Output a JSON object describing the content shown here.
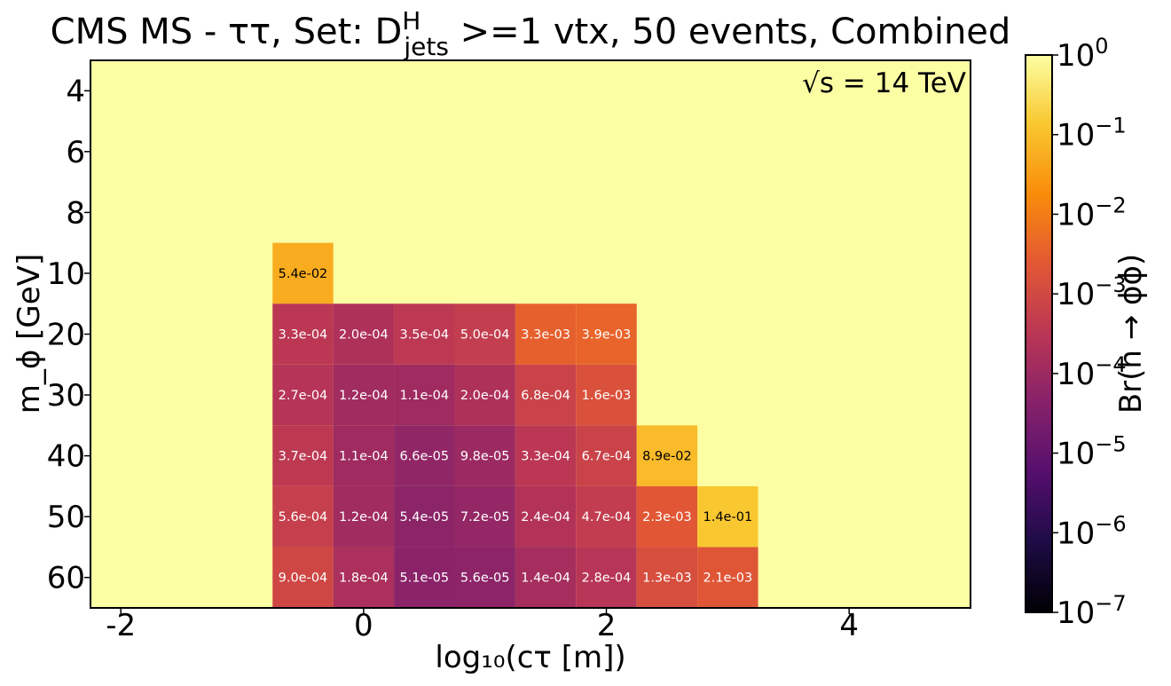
{
  "chart_data": {
    "type": "heatmap",
    "title": {
      "prefix": "CMS MS - ττ, Set: D",
      "superscript": "H",
      "subscript": "jets",
      "suffix": " >=1 vtx, 50 events, Combined"
    },
    "annotation": "√s = 14 TeV",
    "xlabel": "log₁₀(cτ [m])",
    "ylabel": "m_ϕ [GeV]",
    "x_ticks": [
      "-2",
      "0",
      "2",
      "4"
    ],
    "y_ticks": [
      "4",
      "6",
      "8",
      "10",
      "20",
      "30",
      "40",
      "50",
      "60"
    ],
    "x_range": [
      -2.25,
      5.0
    ],
    "x_bin_width": 0.5,
    "colorbar": {
      "label": "Br(h → ϕϕ)",
      "scale": "log",
      "range": [
        1e-07,
        1
      ],
      "colormap": "inferno",
      "ticks": [
        {
          "base": "10",
          "exp": "0"
        },
        {
          "base": "10",
          "exp": "−1"
        },
        {
          "base": "10",
          "exp": "−2"
        },
        {
          "base": "10",
          "exp": "−3"
        },
        {
          "base": "10",
          "exp": "−4"
        },
        {
          "base": "10",
          "exp": "−5"
        },
        {
          "base": "10",
          "exp": "−6"
        },
        {
          "base": "10",
          "exp": "−7"
        }
      ]
    },
    "background_value": 1,
    "cells": [
      {
        "y": "10",
        "x": -0.5,
        "v": 0.054,
        "label": "5.4e-02"
      },
      {
        "y": "20",
        "x": -0.5,
        "v": 0.00033,
        "label": "3.3e-04"
      },
      {
        "y": "20",
        "x": 0.0,
        "v": 0.0002,
        "label": "2.0e-04"
      },
      {
        "y": "20",
        "x": 0.5,
        "v": 0.00035,
        "label": "3.5e-04"
      },
      {
        "y": "20",
        "x": 1.0,
        "v": 0.0005,
        "label": "5.0e-04"
      },
      {
        "y": "20",
        "x": 1.5,
        "v": 0.0033,
        "label": "3.3e-03"
      },
      {
        "y": "20",
        "x": 2.0,
        "v": 0.0039,
        "label": "3.9e-03"
      },
      {
        "y": "30",
        "x": -0.5,
        "v": 0.00027,
        "label": "2.7e-04"
      },
      {
        "y": "30",
        "x": 0.0,
        "v": 0.00012,
        "label": "1.2e-04"
      },
      {
        "y": "30",
        "x": 0.5,
        "v": 0.00011,
        "label": "1.1e-04"
      },
      {
        "y": "30",
        "x": 1.0,
        "v": 0.0002,
        "label": "2.0e-04"
      },
      {
        "y": "30",
        "x": 1.5,
        "v": 0.00068,
        "label": "6.8e-04"
      },
      {
        "y": "30",
        "x": 2.0,
        "v": 0.0016,
        "label": "1.6e-03"
      },
      {
        "y": "40",
        "x": -0.5,
        "v": 0.00037,
        "label": "3.7e-04"
      },
      {
        "y": "40",
        "x": 0.0,
        "v": 0.00011,
        "label": "1.1e-04"
      },
      {
        "y": "40",
        "x": 0.5,
        "v": 6.6e-05,
        "label": "6.6e-05"
      },
      {
        "y": "40",
        "x": 1.0,
        "v": 9.8e-05,
        "label": "9.8e-05"
      },
      {
        "y": "40",
        "x": 1.5,
        "v": 0.00033,
        "label": "3.3e-04"
      },
      {
        "y": "40",
        "x": 2.0,
        "v": 0.00067,
        "label": "6.7e-04"
      },
      {
        "y": "40",
        "x": 2.5,
        "v": 0.089,
        "label": "8.9e-02"
      },
      {
        "y": "50",
        "x": -0.5,
        "v": 0.00056,
        "label": "5.6e-04"
      },
      {
        "y": "50",
        "x": 0.0,
        "v": 0.00012,
        "label": "1.2e-04"
      },
      {
        "y": "50",
        "x": 0.5,
        "v": 5.4e-05,
        "label": "5.4e-05"
      },
      {
        "y": "50",
        "x": 1.0,
        "v": 7.2e-05,
        "label": "7.2e-05"
      },
      {
        "y": "50",
        "x": 1.5,
        "v": 0.00024,
        "label": "2.4e-04"
      },
      {
        "y": "50",
        "x": 2.0,
        "v": 0.00047,
        "label": "4.7e-04"
      },
      {
        "y": "50",
        "x": 2.5,
        "v": 0.0023,
        "label": "2.3e-03"
      },
      {
        "y": "50",
        "x": 3.0,
        "v": 0.14,
        "label": "1.4e-01"
      },
      {
        "y": "60",
        "x": -0.5,
        "v": 0.0009,
        "label": "9.0e-04"
      },
      {
        "y": "60",
        "x": 0.0,
        "v": 0.00018,
        "label": "1.8e-04"
      },
      {
        "y": "60",
        "x": 0.5,
        "v": 5.1e-05,
        "label": "5.1e-05"
      },
      {
        "y": "60",
        "x": 1.0,
        "v": 5.6e-05,
        "label": "5.6e-05"
      },
      {
        "y": "60",
        "x": 1.5,
        "v": 0.00014,
        "label": "1.4e-04"
      },
      {
        "y": "60",
        "x": 2.0,
        "v": 0.00028,
        "label": "2.8e-04"
      },
      {
        "y": "60",
        "x": 2.5,
        "v": 0.0013,
        "label": "1.3e-03"
      },
      {
        "y": "60",
        "x": 3.0,
        "v": 0.0021,
        "label": "2.1e-03"
      }
    ]
  }
}
